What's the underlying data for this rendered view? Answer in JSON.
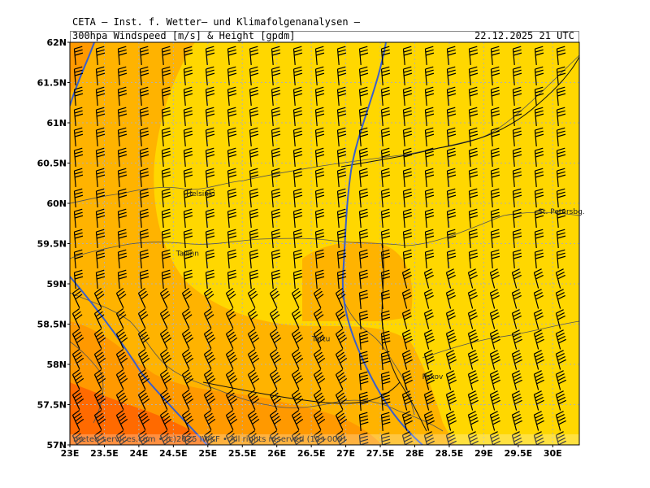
{
  "header": {
    "title": "CETA — Inst. f. Wetter— und Klimafolgenanalysen —",
    "subtitle": "300hpa Windspeed [m/s] & Height [gpdm]",
    "datetime": "22.12.2025 21 UTC"
  },
  "axes": {
    "lat_labels": [
      "62N",
      "61.5N",
      "61N",
      "60.5N",
      "60N",
      "59.5N",
      "59N",
      "58.5N",
      "58N",
      "57.5N",
      "57N"
    ],
    "lon_labels": [
      "23E",
      "23.5E",
      "24E",
      "24.5E",
      "25E",
      "25.5E",
      "26E",
      "26.5E",
      "27E",
      "27.5E",
      "28E",
      "28.5E",
      "29E",
      "29.5E",
      "30E"
    ]
  },
  "cities": [
    {
      "name": "Helsinki",
      "lon": 24.9,
      "lat": 60.12
    },
    {
      "name": "Tallinn",
      "lon": 24.75,
      "lat": 59.38
    },
    {
      "name": "Tartu",
      "lon": 26.72,
      "lat": 58.32
    },
    {
      "name": "Pskov",
      "lon": 28.32,
      "lat": 57.85
    },
    {
      "name": "St. Petersbg.",
      "lon": 30.0,
      "lat": 59.9
    }
  ],
  "footer": {
    "text": "meteo-services.com • (c)2025 IWKF • All rights reserved (12+009)"
  },
  "colors": {
    "wind_low": "#ffd700",
    "wind_mid": "#ffb300",
    "wind_high": "#ff9900",
    "wind_max": "#ff6a00",
    "height_contour": "#3a5fcd",
    "grid": "#b0b0b0"
  }
}
